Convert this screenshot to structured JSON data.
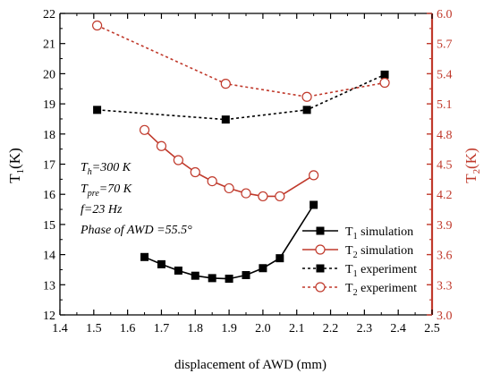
{
  "chart_data": {
    "type": "line",
    "xlabel": "displacement of AWD (mm)",
    "ylabel_left": {
      "base": "T",
      "sub": "1",
      "unit": "(K)"
    },
    "ylabel_right": {
      "base": "T",
      "sub": "2",
      "unit": "(K)"
    },
    "xlim": [
      1.4,
      2.5
    ],
    "ylim_left": [
      12,
      22
    ],
    "ylim_right": [
      3.0,
      6.0
    ],
    "x_ticks": [
      "1.4",
      "1.5",
      "1.6",
      "1.7",
      "1.8",
      "1.9",
      "2.0",
      "2.1",
      "2.2",
      "2.3",
      "2.4",
      "2.5"
    ],
    "y_left_ticks": [
      "12",
      "13",
      "14",
      "15",
      "16",
      "17",
      "18",
      "19",
      "20",
      "21",
      "22"
    ],
    "y_right_ticks": [
      "3.0",
      "3.3",
      "3.6",
      "3.9",
      "4.2",
      "4.5",
      "4.8",
      "5.1",
      "5.4",
      "5.7",
      "6.0"
    ],
    "right_axis_color": "#c0392b",
    "annotations": {
      "th": {
        "base": "T",
        "sub": "h",
        "rest": "=300 K"
      },
      "tpre": {
        "base": "T",
        "sub": "pre",
        "rest": "=70 K"
      },
      "freq": "f=23 Hz",
      "phase": "Phase of AWD =55.5°"
    },
    "series": [
      {
        "key": "t1sim",
        "legend": {
          "base": "T",
          "sub": "1",
          "rest": " simulation"
        },
        "axis": "left",
        "color": "#000000",
        "marker": "square",
        "filled": true,
        "dash": "none",
        "x": [
          1.65,
          1.7,
          1.75,
          1.8,
          1.85,
          1.9,
          1.95,
          2.0,
          2.05,
          2.15
        ],
        "y": [
          13.92,
          13.68,
          13.47,
          13.3,
          13.22,
          13.2,
          13.32,
          13.55,
          13.88,
          15.65
        ]
      },
      {
        "key": "t2sim",
        "legend": {
          "base": "T",
          "sub": "2",
          "rest": " simulation"
        },
        "axis": "right",
        "color": "#c0392b",
        "marker": "circle",
        "filled": false,
        "dash": "none",
        "x": [
          1.65,
          1.7,
          1.75,
          1.8,
          1.85,
          1.9,
          1.95,
          2.0,
          2.05,
          2.15
        ],
        "y": [
          4.84,
          4.68,
          4.54,
          4.42,
          4.33,
          4.26,
          4.21,
          4.18,
          4.18,
          4.39
        ]
      },
      {
        "key": "t1exp",
        "legend": {
          "base": "T",
          "sub": "1",
          "rest": " experiment"
        },
        "axis": "left",
        "color": "#000000",
        "marker": "square",
        "filled": true,
        "dash": "3,3",
        "x": [
          1.51,
          1.89,
          2.13,
          2.36
        ],
        "y": [
          18.8,
          18.48,
          18.8,
          19.97
        ]
      },
      {
        "key": "t2exp",
        "legend": {
          "base": "T",
          "sub": "2",
          "rest": " experiment"
        },
        "axis": "right",
        "color": "#c0392b",
        "marker": "circle",
        "filled": false,
        "dash": "3,3",
        "x": [
          1.51,
          1.89,
          2.13,
          2.36
        ],
        "y": [
          5.88,
          5.3,
          5.17,
          5.31
        ]
      }
    ]
  }
}
